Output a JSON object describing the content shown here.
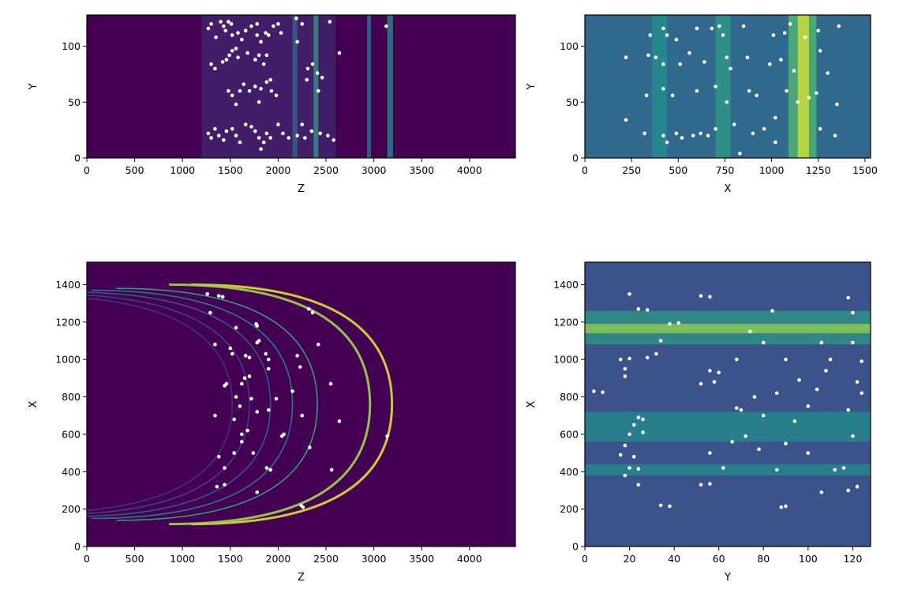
{
  "chart_data": [
    {
      "id": "panel-top-left",
      "type": "heatmap",
      "xlabel": "Z",
      "ylabel": "Y",
      "xlim": [
        0,
        4480
      ],
      "ylim": [
        0,
        128
      ],
      "xticks": [
        0,
        500,
        1000,
        1500,
        2000,
        2500,
        3000,
        3500,
        4000
      ],
      "xtick_labels": [
        "0",
        "500",
        "1000",
        "1500",
        "2000",
        "2500",
        "3000",
        "3500",
        "4000"
      ],
      "yticks": [
        0,
        50,
        100
      ],
      "ytick_labels": [
        "0",
        "50",
        "100"
      ],
      "colormap": "viridis",
      "background_color": "#440154",
      "bands": [
        {
          "x0": 1200,
          "x1": 2600,
          "level": 0.12
        },
        {
          "x0": 2150,
          "x1": 2200,
          "level": 0.35
        },
        {
          "x0": 2370,
          "x1": 2420,
          "level": 0.55
        },
        {
          "x0": 2930,
          "x1": 2970,
          "level": 0.42
        },
        {
          "x0": 3140,
          "x1": 3200,
          "level": 0.5
        }
      ],
      "markers_color": "#ffffff",
      "markers": [
        [
          1270,
          116
        ],
        [
          1300,
          120
        ],
        [
          1350,
          108
        ],
        [
          1400,
          122
        ],
        [
          1430,
          118
        ],
        [
          1450,
          114
        ],
        [
          1480,
          122
        ],
        [
          1510,
          120
        ],
        [
          1520,
          110
        ],
        [
          1580,
          112
        ],
        [
          1620,
          106
        ],
        [
          1660,
          114
        ],
        [
          1720,
          118
        ],
        [
          1780,
          120
        ],
        [
          1780,
          110
        ],
        [
          1820,
          104
        ],
        [
          1870,
          112
        ],
        [
          1900,
          110
        ],
        [
          1950,
          118
        ],
        [
          2000,
          120
        ],
        [
          2030,
          112
        ],
        [
          1300,
          84
        ],
        [
          1340,
          80
        ],
        [
          1420,
          86
        ],
        [
          1460,
          88
        ],
        [
          1490,
          92
        ],
        [
          1520,
          96
        ],
        [
          1560,
          98
        ],
        [
          1580,
          90
        ],
        [
          1680,
          94
        ],
        [
          1760,
          88
        ],
        [
          1800,
          92
        ],
        [
          1850,
          84
        ],
        [
          1880,
          92
        ],
        [
          1480,
          60
        ],
        [
          1520,
          56
        ],
        [
          1600,
          60
        ],
        [
          1640,
          66
        ],
        [
          1700,
          60
        ],
        [
          1760,
          64
        ],
        [
          1820,
          62
        ],
        [
          1880,
          68
        ],
        [
          1920,
          70
        ],
        [
          1930,
          60
        ],
        [
          1980,
          56
        ],
        [
          1560,
          48
        ],
        [
          1800,
          50
        ],
        [
          1270,
          22
        ],
        [
          1300,
          18
        ],
        [
          1340,
          26
        ],
        [
          1380,
          20
        ],
        [
          1430,
          16
        ],
        [
          1460,
          24
        ],
        [
          1520,
          26
        ],
        [
          1560,
          20
        ],
        [
          1600,
          14
        ],
        [
          1660,
          30
        ],
        [
          1720,
          28
        ],
        [
          1760,
          24
        ],
        [
          1800,
          18
        ],
        [
          1820,
          8
        ],
        [
          1850,
          14
        ],
        [
          1880,
          22
        ],
        [
          1920,
          18
        ],
        [
          2000,
          30
        ],
        [
          2050,
          22
        ],
        [
          2110,
          18
        ],
        [
          2200,
          20
        ],
        [
          2250,
          30
        ],
        [
          2280,
          18
        ],
        [
          2350,
          24
        ],
        [
          2440,
          22
        ],
        [
          2520,
          20
        ],
        [
          2580,
          16
        ],
        [
          2190,
          125
        ],
        [
          2250,
          120
        ],
        [
          2540,
          122
        ],
        [
          3130,
          118
        ],
        [
          2200,
          104
        ],
        [
          2300,
          70
        ],
        [
          2310,
          80
        ],
        [
          2360,
          84
        ],
        [
          2410,
          76
        ],
        [
          2640,
          94
        ],
        [
          2420,
          60
        ],
        [
          2460,
          72
        ]
      ]
    },
    {
      "id": "panel-top-right",
      "type": "heatmap",
      "xlabel": "X",
      "ylabel": "Y",
      "xlim": [
        0,
        1530
      ],
      "ylim": [
        0,
        128
      ],
      "xticks": [
        0,
        250,
        500,
        750,
        1000,
        1250,
        1500
      ],
      "xtick_labels": [
        "0",
        "250",
        "500",
        "750",
        "1000",
        "1250",
        "1500"
      ],
      "yticks": [
        0,
        50,
        100
      ],
      "ytick_labels": [
        "0",
        "50",
        "100"
      ],
      "colormap": "viridis",
      "background_color": "#31688e",
      "bands": [
        {
          "x0": 360,
          "x1": 440,
          "level": 0.5
        },
        {
          "x0": 700,
          "x1": 780,
          "level": 0.55
        },
        {
          "x0": 1090,
          "x1": 1240,
          "level": 0.7
        },
        {
          "x0": 1140,
          "x1": 1200,
          "level": 0.95
        }
      ],
      "markers_color": "#ffffff",
      "markers": [
        [
          220,
          90
        ],
        [
          220,
          34
        ],
        [
          320,
          22
        ],
        [
          330,
          56
        ],
        [
          340,
          92
        ],
        [
          350,
          110
        ],
        [
          380,
          90
        ],
        [
          420,
          116
        ],
        [
          420,
          84
        ],
        [
          420,
          62
        ],
        [
          420,
          20
        ],
        [
          440,
          110
        ],
        [
          440,
          14
        ],
        [
          470,
          56
        ],
        [
          490,
          22
        ],
        [
          490,
          106
        ],
        [
          510,
          84
        ],
        [
          520,
          18
        ],
        [
          560,
          94
        ],
        [
          580,
          20
        ],
        [
          600,
          116
        ],
        [
          600,
          60
        ],
        [
          620,
          22
        ],
        [
          640,
          86
        ],
        [
          660,
          20
        ],
        [
          680,
          116
        ],
        [
          700,
          26
        ],
        [
          720,
          118
        ],
        [
          740,
          110
        ],
        [
          760,
          90
        ],
        [
          760,
          50
        ],
        [
          780,
          80
        ],
        [
          800,
          30
        ],
        [
          830,
          4
        ],
        [
          850,
          118
        ],
        [
          870,
          90
        ],
        [
          880,
          60
        ],
        [
          900,
          22
        ],
        [
          920,
          56
        ],
        [
          960,
          26
        ],
        [
          990,
          84
        ],
        [
          1010,
          110
        ],
        [
          1020,
          36
        ],
        [
          1050,
          88
        ],
        [
          1070,
          112
        ],
        [
          1080,
          60
        ],
        [
          1100,
          120
        ],
        [
          1120,
          78
        ],
        [
          1140,
          50
        ],
        [
          1200,
          54
        ],
        [
          1240,
          58
        ],
        [
          1250,
          114
        ],
        [
          1260,
          96
        ],
        [
          1260,
          26
        ],
        [
          1300,
          76
        ],
        [
          1350,
          48
        ],
        [
          1360,
          118
        ],
        [
          1340,
          20
        ],
        [
          1020,
          14
        ],
        [
          700,
          64
        ],
        [
          1180,
          108
        ]
      ]
    },
    {
      "id": "panel-bottom-left",
      "type": "heatmap",
      "xlabel": "Z",
      "ylabel": "X",
      "xlim": [
        0,
        4480
      ],
      "ylim": [
        0,
        1520
      ],
      "xticks": [
        0,
        500,
        1000,
        1500,
        2000,
        2500,
        3000,
        3500,
        4000
      ],
      "xtick_labels": [
        "0",
        "500",
        "1000",
        "1500",
        "2000",
        "2500",
        "3000",
        "3500",
        "4000"
      ],
      "yticks": [
        0,
        200,
        400,
        600,
        800,
        1000,
        1200,
        1400
      ],
      "ytick_labels": [
        "0",
        "200",
        "400",
        "600",
        "800",
        "1000",
        "1200",
        "1400"
      ],
      "colormap": "viridis",
      "background_color": "#440154",
      "arc_center_x": 760,
      "arcs": [
        {
          "vertex": 3190,
          "halfwidth": 640,
          "level": 0.95
        },
        {
          "vertex": 2960,
          "halfwidth": 640,
          "level": 0.85
        },
        {
          "vertex": 2410,
          "halfwidth": 620,
          "level": 0.6
        },
        {
          "vertex": 2150,
          "halfwidth": 610,
          "level": 0.45
        },
        {
          "vertex": 1920,
          "halfwidth": 600,
          "level": 0.3
        },
        {
          "vertex": 1700,
          "halfwidth": 590,
          "level": 0.22
        },
        {
          "vertex": 1520,
          "halfwidth": 580,
          "level": 0.18
        }
      ],
      "markers_color": "#ffffff",
      "markers": [
        [
          1260,
          1350
        ],
        [
          1380,
          1340
        ],
        [
          1420,
          1335
        ],
        [
          1290,
          1250
        ],
        [
          1560,
          1170
        ],
        [
          1340,
          1080
        ],
        [
          1500,
          1060
        ],
        [
          1520,
          1030
        ],
        [
          1460,
          870
        ],
        [
          1440,
          860
        ],
        [
          1560,
          800
        ],
        [
          1660,
          1020
        ],
        [
          1700,
          1010
        ],
        [
          1650,
          900
        ],
        [
          1700,
          910
        ],
        [
          1620,
          870
        ],
        [
          1720,
          790
        ],
        [
          1600,
          750
        ],
        [
          1340,
          700
        ],
        [
          1540,
          680
        ],
        [
          1620,
          600
        ],
        [
          1380,
          480
        ],
        [
          1540,
          500
        ],
        [
          1620,
          560
        ],
        [
          1680,
          620
        ],
        [
          1780,
          720
        ],
        [
          1740,
          500
        ],
        [
          1440,
          420
        ],
        [
          1440,
          330
        ],
        [
          1360,
          320
        ],
        [
          1780,
          290
        ],
        [
          1880,
          420
        ],
        [
          1920,
          410
        ],
        [
          1900,
          730
        ],
        [
          1780,
          1090
        ],
        [
          1770,
          1190
        ],
        [
          1780,
          1180
        ],
        [
          1870,
          1030
        ],
        [
          1900,
          950
        ],
        [
          1980,
          790
        ],
        [
          2150,
          830
        ],
        [
          2200,
          1020
        ],
        [
          2230,
          960
        ],
        [
          2040,
          590
        ],
        [
          2060,
          600
        ],
        [
          2250,
          700
        ],
        [
          2330,
          530
        ],
        [
          2360,
          1250
        ],
        [
          2320,
          1270
        ],
        [
          2420,
          1080
        ],
        [
          2550,
          870
        ],
        [
          2560,
          410
        ],
        [
          2240,
          220
        ],
        [
          2260,
          210
        ],
        [
          2640,
          670
        ],
        [
          3140,
          590
        ],
        [
          1800,
          1100
        ],
        [
          1900,
          1000
        ]
      ]
    },
    {
      "id": "panel-bottom-right",
      "type": "heatmap",
      "xlabel": "Y",
      "ylabel": "X",
      "xlim": [
        0,
        128
      ],
      "ylim": [
        0,
        1520
      ],
      "xticks": [
        0,
        20,
        40,
        60,
        80,
        100,
        120
      ],
      "xtick_labels": [
        "0",
        "20",
        "40",
        "60",
        "80",
        "100",
        "120"
      ],
      "yticks": [
        0,
        200,
        400,
        600,
        800,
        1000,
        1200,
        1400
      ],
      "ytick_labels": [
        "0",
        "200",
        "400",
        "600",
        "800",
        "1000",
        "1200",
        "1400"
      ],
      "colormap": "viridis",
      "background_color": "#3b528b",
      "hbands": [
        {
          "y0": 1080,
          "y1": 1260,
          "level": 0.55
        },
        {
          "y0": 1140,
          "y1": 1190,
          "level": 0.85
        },
        {
          "y0": 560,
          "y1": 720,
          "level": 0.5
        },
        {
          "y0": 380,
          "y1": 440,
          "level": 0.5
        }
      ],
      "markers_color": "#ffffff",
      "markers": [
        [
          20,
          1350
        ],
        [
          24,
          1270
        ],
        [
          28,
          1265
        ],
        [
          52,
          1340
        ],
        [
          56,
          1335
        ],
        [
          84,
          1260
        ],
        [
          118,
          1330
        ],
        [
          120,
          1250
        ],
        [
          38,
          1190
        ],
        [
          42,
          1195
        ],
        [
          74,
          1150
        ],
        [
          80,
          1090
        ],
        [
          120,
          1090
        ],
        [
          34,
          1100
        ],
        [
          106,
          1090
        ],
        [
          16,
          1000
        ],
        [
          20,
          1005
        ],
        [
          32,
          1030
        ],
        [
          68,
          1000
        ],
        [
          110,
          1000
        ],
        [
          124,
          990
        ],
        [
          18,
          950
        ],
        [
          56,
          940
        ],
        [
          60,
          930
        ],
        [
          108,
          940
        ],
        [
          122,
          880
        ],
        [
          18,
          910
        ],
        [
          52,
          870
        ],
        [
          96,
          890
        ],
        [
          86,
          820
        ],
        [
          4,
          830
        ],
        [
          8,
          825
        ],
        [
          76,
          800
        ],
        [
          104,
          840
        ],
        [
          124,
          820
        ],
        [
          68,
          740
        ],
        [
          70,
          730
        ],
        [
          80,
          700
        ],
        [
          100,
          750
        ],
        [
          118,
          730
        ],
        [
          24,
          690
        ],
        [
          26,
          680
        ],
        [
          94,
          670
        ],
        [
          22,
          650
        ],
        [
          20,
          600
        ],
        [
          26,
          610
        ],
        [
          72,
          590
        ],
        [
          120,
          590
        ],
        [
          18,
          540
        ],
        [
          66,
          560
        ],
        [
          90,
          550
        ],
        [
          16,
          490
        ],
        [
          22,
          480
        ],
        [
          56,
          500
        ],
        [
          78,
          520
        ],
        [
          100,
          500
        ],
        [
          112,
          410
        ],
        [
          20,
          420
        ],
        [
          24,
          415
        ],
        [
          62,
          420
        ],
        [
          86,
          410
        ],
        [
          116,
          420
        ],
        [
          18,
          380
        ],
        [
          52,
          330
        ],
        [
          56,
          335
        ],
        [
          24,
          330
        ],
        [
          118,
          300
        ],
        [
          34,
          220
        ],
        [
          38,
          215
        ],
        [
          88,
          210
        ],
        [
          90,
          215
        ],
        [
          106,
          290
        ],
        [
          122,
          320
        ],
        [
          28,
          1010
        ],
        [
          90,
          1000
        ],
        [
          58,
          880
        ]
      ]
    }
  ]
}
